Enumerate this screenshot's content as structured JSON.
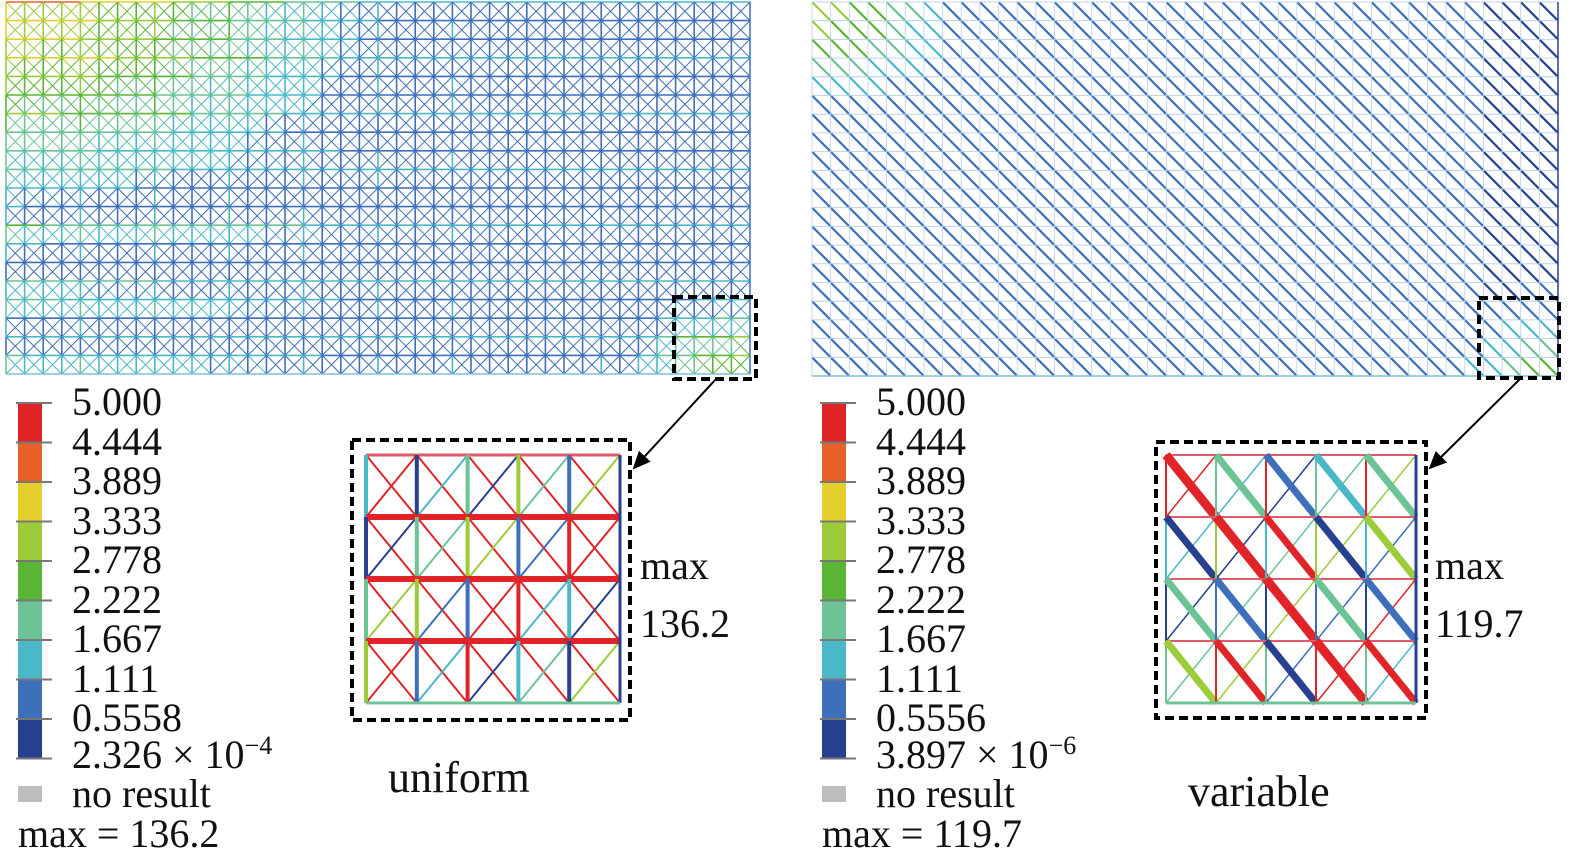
{
  "panels": [
    {
      "caption": "uniform",
      "legend": {
        "levels": [
          "5.000",
          "4.444",
          "3.889",
          "3.333",
          "2.778",
          "2.222",
          "1.667",
          "1.111",
          "0.5558"
        ],
        "min_mantissa": "2.326 × 10",
        "min_exponent": "−4",
        "no_result": "no result",
        "max_text": "max = 136.2"
      },
      "inset": {
        "max_label": "max",
        "max_value": "136.2"
      },
      "diagonals": "crossed"
    },
    {
      "caption": "variable",
      "legend": {
        "levels": [
          "5.000",
          "4.444",
          "3.889",
          "3.333",
          "2.778",
          "2.222",
          "1.667",
          "1.111",
          "0.5556"
        ],
        "min_mantissa": "3.897 × 10",
        "min_exponent": "−6",
        "no_result": "no result",
        "max_text": "max = 119.7"
      },
      "inset": {
        "max_label": "max",
        "max_value": "119.7"
      },
      "diagonals": "single"
    }
  ],
  "colormap": [
    "#e02428",
    "#e8602a",
    "#e4d02c",
    "#9ccc3a",
    "#5ab534",
    "#6cc496",
    "#4ab8c8",
    "#3d6fba",
    "#27408f"
  ],
  "no_result_color": "#bdbdbd"
}
